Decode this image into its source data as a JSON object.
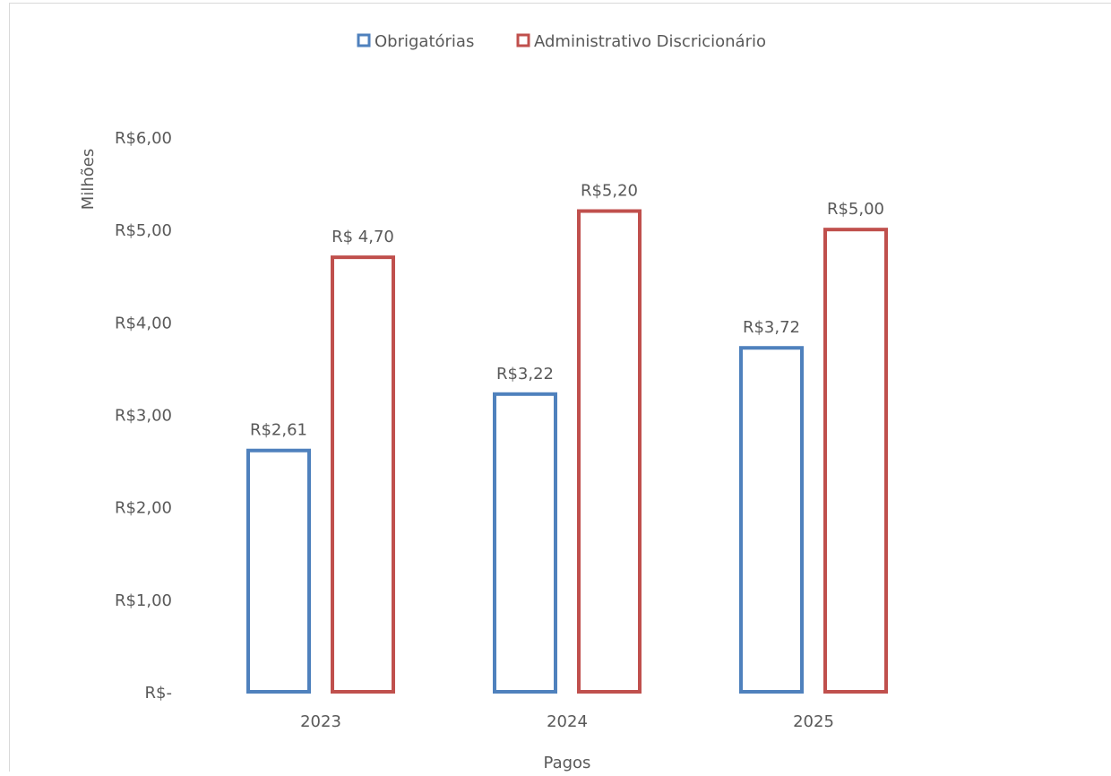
{
  "chart_data": {
    "type": "bar",
    "bar_style": "outline",
    "categories": [
      "2023",
      "2024",
      "2025"
    ],
    "series": [
      {
        "name": "Obrigatórias",
        "color": "#4F81BD",
        "values": [
          2.61,
          3.22,
          3.72
        ],
        "labels": [
          "R$2,61",
          "R$3,22",
          "R$3,72"
        ]
      },
      {
        "name": "Administrativo Discricionário",
        "color": "#C0504D",
        "values": [
          4.7,
          5.2,
          5.0
        ],
        "labels": [
          "R$ 4,70",
          "R$5,20",
          "R$5,00"
        ]
      }
    ],
    "xlabel": "Pagos",
    "ylabel": "Milhões",
    "ylim": [
      0,
      6
    ],
    "yticks": [
      0,
      1,
      2,
      3,
      4,
      5,
      6
    ],
    "ytick_labels": [
      "R$-",
      "R$1,00",
      "R$2,00",
      "R$3,00",
      "R$4,00",
      "R$5,00",
      "R$6,00"
    ],
    "grid": false,
    "legend_position": "top-center"
  }
}
